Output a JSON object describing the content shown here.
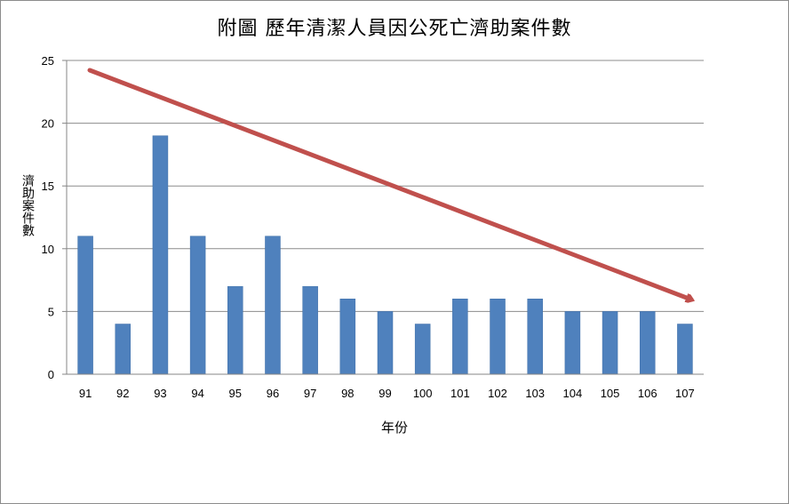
{
  "chart_data": {
    "type": "bar",
    "title": "附圖  歷年清潔人員因公死亡濟助案件數",
    "xlabel": "年份",
    "ylabel": "濟助案件數",
    "categories": [
      "91",
      "92",
      "93",
      "94",
      "95",
      "96",
      "97",
      "98",
      "99",
      "100",
      "101",
      "102",
      "103",
      "104",
      "105",
      "106",
      "107"
    ],
    "values": [
      11,
      4,
      19,
      11,
      7,
      11,
      7,
      6,
      5,
      4,
      6,
      6,
      6,
      5,
      5,
      5,
      4
    ],
    "ylim": [
      0,
      25
    ],
    "yticks": [
      "0",
      "5",
      "10",
      "15",
      "20",
      "25"
    ],
    "grid": true,
    "legend": "none",
    "trend_arrow": {
      "direction": "decreasing"
    },
    "colors": {
      "bar": "#4f81bd",
      "bar_edge": "#3f6fa8",
      "arrow": "#c0504d",
      "grid": "#8c8c8c",
      "axis": "#868686"
    }
  }
}
